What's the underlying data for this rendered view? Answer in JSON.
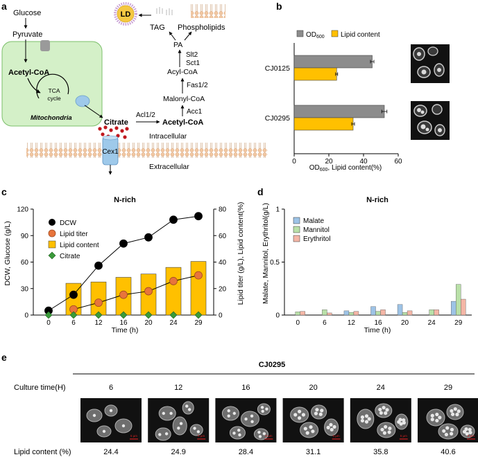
{
  "panel_labels": {
    "a": "a",
    "b": "b",
    "c": "c",
    "d": "d",
    "e": "e"
  },
  "pathway": {
    "glucose": "Glucose",
    "pyruvate": "Pyruvate",
    "acetyl_coa_mito": "Acetyl-CoA",
    "tca_line1": "TCA",
    "tca_line2": "cycle",
    "mitochondria": "Mitochondria",
    "citrate": "Citrate",
    "acl": "Acl1/2",
    "acetyl_coa": "Acetyl-CoA",
    "acc": "Acc1",
    "malonyl_coa": "Malonyl-CoA",
    "fas": "Fas1/2",
    "acyl_coa": "Acyl-CoA",
    "slt2": "Slt2",
    "sct1": "Sct1",
    "pa": "PA",
    "tag": "TAG",
    "phospholipids": "Phospholipids",
    "ld": "LD",
    "cex1": "Cex1",
    "intracellular": "Intracellular",
    "extracellular": "Extracellular",
    "colors": {
      "mito_fill": "#d4f0c8",
      "mito_stroke": "#7bbf6a",
      "ld_fill": "#f5c842",
      "dot": "#c0181e",
      "channel": "#9ec9ea"
    }
  },
  "chart_data": [
    {
      "id": "b",
      "type": "bar",
      "orientation": "horizontal",
      "categories": [
        "CJ0125",
        "CJ0295"
      ],
      "series": [
        {
          "name": "OD600",
          "name_main": "OD",
          "name_sub": "600",
          "values": [
            45,
            52
          ],
          "errors": [
            1,
            1.5
          ],
          "color": "#8c8c8c"
        },
        {
          "name": "Lipid content",
          "values": [
            24.5,
            34
          ],
          "errors": [
            0.6,
            0.8
          ],
          "color": "#ffc000"
        }
      ],
      "xlim": [
        0,
        60
      ],
      "xticks": [
        0,
        20,
        40,
        60
      ],
      "xlabel_main": "OD",
      "xlabel_sub": "600",
      "xlabel_rest": ", Lipid content(%)",
      "legend": "top"
    },
    {
      "id": "c",
      "type": "bar+scatter",
      "title": "N-rich",
      "categories": [
        "0",
        "6",
        "12",
        "16",
        "20",
        "24",
        "29"
      ],
      "xlabel": "Time (h)",
      "ylabel_left": "DCW, Glucose (g/L)",
      "ylabel_right": "Lipid titer (g/L), Lipid content(%)",
      "ylim_left": [
        0,
        120
      ],
      "yticks_left": [
        0,
        30,
        60,
        90,
        120
      ],
      "ylim_right": [
        0,
        80
      ],
      "yticks_right": [
        0,
        20,
        40,
        60,
        80
      ],
      "series": [
        {
          "name": "DCW",
          "kind": "line-marker",
          "axis": "left",
          "marker": "circle",
          "color": "#000000",
          "values": [
            5,
            23,
            56,
            81,
            88,
            108,
            112
          ]
        },
        {
          "name": "Lipid titer",
          "kind": "line-marker",
          "axis": "left",
          "marker": "circle",
          "color": "#e8743b",
          "values": [
            null,
            6.5,
            14,
            23,
            27,
            38.5,
            45
          ]
        },
        {
          "name": "Lipid content",
          "kind": "bar",
          "axis": "right",
          "color": "#ffc000",
          "values": [
            null,
            24,
            25,
            28.5,
            31,
            36,
            40.5
          ]
        },
        {
          "name": "Citrate",
          "kind": "marker",
          "axis": "left",
          "marker": "diamond",
          "color": "#3a9a3a",
          "values": [
            0,
            0,
            0,
            0,
            0,
            0,
            0
          ]
        }
      ],
      "legend": "top-left"
    },
    {
      "id": "d",
      "type": "bar",
      "title": "N-rich",
      "categories": [
        "0",
        "6",
        "12",
        "16",
        "20",
        "24",
        "29"
      ],
      "xlabel": "Time (h)",
      "ylabel": "Malate, Mannitol, Erythritol(g/L)",
      "ylim": [
        0,
        1
      ],
      "yticks": [
        0,
        0.5,
        1
      ],
      "ytick_labels": [
        "0",
        "0.5",
        "1"
      ],
      "series": [
        {
          "name": "Malate",
          "color": "#9dc3e6",
          "values": [
            0,
            0,
            0.04,
            0.08,
            0.1,
            0,
            0.13
          ]
        },
        {
          "name": "Mannitol",
          "color": "#b9e0a8",
          "values": [
            0.03,
            0.05,
            0.025,
            0.035,
            0.025,
            0.05,
            0.29
          ]
        },
        {
          "name": "Erythritol",
          "color": "#f4b6a6",
          "values": [
            0.035,
            0.02,
            0.035,
            0.05,
            0.04,
            0.05,
            0.15
          ]
        }
      ],
      "legend": "top-left"
    }
  ],
  "panel_e": {
    "strain": "CJ0295",
    "culture_label": "Culture time(H)",
    "lipid_label": "Lipid content (%)",
    "scale_label": "5 µm",
    "times": [
      "6",
      "12",
      "16",
      "20",
      "24",
      "29"
    ],
    "lipid_values": [
      "24.4",
      "24.9",
      "28.4",
      "31.1",
      "35.8",
      "40.6"
    ]
  }
}
